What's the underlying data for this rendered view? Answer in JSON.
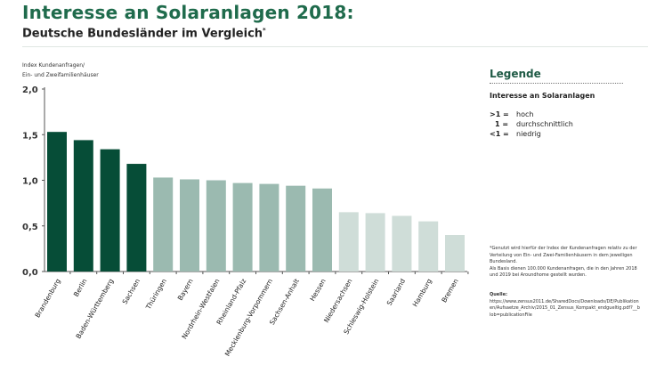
{
  "header": {
    "title": "Interesse an Solaranlagen 2018:",
    "subtitle": "Deutsche Bundesländer im Vergleich",
    "subtitle_mark": "*"
  },
  "chart_data": {
    "type": "bar",
    "title": "Interesse an Solaranlagen 2018:",
    "ylabel_lines": [
      "Index Kundenanfragen/",
      "Ein- und Zweifamilienhäuser"
    ],
    "ylim": [
      0,
      2.0
    ],
    "yticks": [
      "0,0",
      "0,5",
      "1,0",
      "1,5",
      "2,0"
    ],
    "ytick_values": [
      0,
      0.5,
      1.0,
      1.5,
      2.0
    ],
    "grid": false,
    "categories": [
      "Brandenburg",
      "Berlin",
      "Baden-Württemberg",
      "Sachsen",
      "Thüringen",
      "Bayern",
      "Nordrhein-Westfalen",
      "Rheinland-Pfalz",
      "Mecklenburg-Vorpommern",
      "Sachsen-Anhalt",
      "Hessen",
      "Niedersachsen",
      "Schleswig-Holstein",
      "Saarland",
      "Hamburg",
      "Bremen"
    ],
    "values": [
      1.53,
      1.44,
      1.34,
      1.18,
      1.03,
      1.01,
      1.0,
      0.97,
      0.96,
      0.94,
      0.91,
      0.65,
      0.64,
      0.61,
      0.55,
      0.4
    ],
    "levels": [
      "hoch",
      "hoch",
      "hoch",
      "hoch",
      "durchschnittlich",
      "durchschnittlich",
      "durchschnittlich",
      "durchschnittlich",
      "durchschnittlich",
      "durchschnittlich",
      "durchschnittlich",
      "niedrig",
      "niedrig",
      "niedrig",
      "niedrig",
      "niedrig"
    ],
    "colors": {
      "hoch": "#064d37",
      "durchschnittlich": "#9bbab0",
      "niedrig": "#cfddd8",
      "axis": "#555555"
    }
  },
  "legend": {
    "title": "Legende",
    "subtitle": "Interesse an Solaranlagen",
    "rows": [
      {
        "key": ">1 =",
        "label": "hoch"
      },
      {
        "key": "1 =",
        "label": "durchschnittlich"
      },
      {
        "key": "<1 =",
        "label": "niedrig"
      }
    ]
  },
  "note": {
    "lines": [
      "*Genutzt wird hierfür der Index der Kundenanfragen relativ zu der Verteilung von Ein- und Zwei-Familienhäusern in dem jeweiligen Bundesland.",
      "Als Basis dienen 100.000 Kundenanfragen, die in den Jahren 2018 und 2019 bei Aroundhome gestellt wurden."
    ]
  },
  "source": {
    "label": "Quelle:",
    "text": "https://www.zensus2011.de/SharedDocs/Downloads/DE/Publikationen/Aufsaetze_Archiv/2015_01_Zensus_Kompakt_endgueltig.pdf?__blob=publicationFile"
  }
}
